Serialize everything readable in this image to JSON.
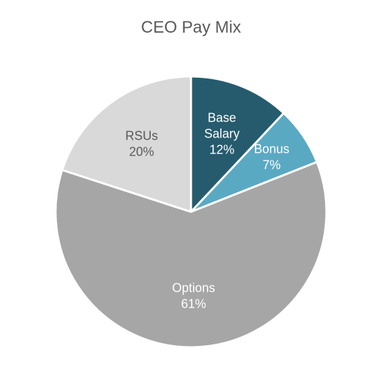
{
  "chart_data": {
    "type": "pie",
    "title": "CEO Pay Mix",
    "slices": [
      {
        "label": "Base Salary",
        "value": 12,
        "value_label": "12%",
        "color": "#265B6E",
        "label_color": "#ffffff",
        "label_lines": [
          "Base",
          "Salary",
          "12%"
        ]
      },
      {
        "label": "Bonus",
        "value": 7,
        "value_label": "7%",
        "color": "#5AA9C3",
        "label_color": "#ffffff",
        "label_lines": [
          "Bonus",
          "7%"
        ]
      },
      {
        "label": "Options",
        "value": 61,
        "value_label": "61%",
        "color": "#A6A6A6",
        "label_color": "#ffffff",
        "label_lines": [
          "Options",
          "61%"
        ]
      },
      {
        "label": "RSUs",
        "value": 20,
        "value_label": "20%",
        "color": "#D9D9D9",
        "label_color": "#595959",
        "label_lines": [
          "RSUs",
          "20%"
        ]
      }
    ],
    "start_angle_deg": 0,
    "direction": "clockwise",
    "legend": "none"
  }
}
